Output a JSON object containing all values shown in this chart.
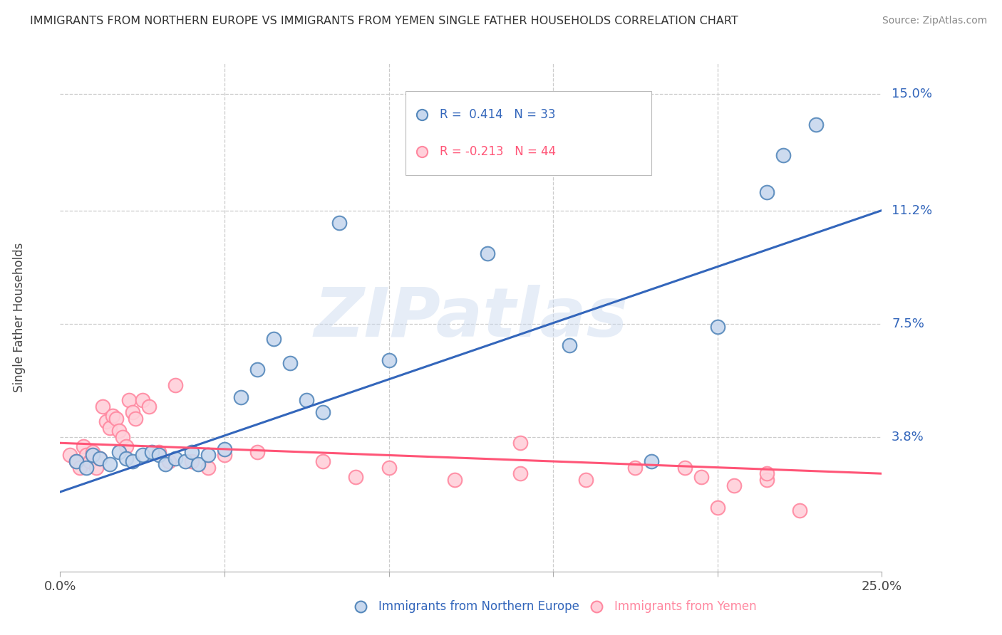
{
  "title": "IMMIGRANTS FROM NORTHERN EUROPE VS IMMIGRANTS FROM YEMEN SINGLE FATHER HOUSEHOLDS CORRELATION CHART",
  "source": "Source: ZipAtlas.com",
  "ylabel": "Single Father Households",
  "x_min": 0.0,
  "x_max": 0.25,
  "y_min": -0.006,
  "y_max": 0.16,
  "yticks": [
    0.0,
    0.038,
    0.075,
    0.112,
    0.15
  ],
  "ytick_labels": [
    "",
    "3.8%",
    "7.5%",
    "11.2%",
    "15.0%"
  ],
  "legend_r1": "R =  0.414   N = 33",
  "legend_r2": "R = -0.213   N = 44",
  "blue_color_face": "#C8D8EE",
  "blue_color_edge": "#5588BB",
  "pink_color_face": "#FFD0DA",
  "pink_color_edge": "#FF88A0",
  "blue_line_color": "#3366BB",
  "pink_line_color": "#FF5577",
  "watermark_text": "ZIPatlas",
  "legend_label_blue": "Immigrants from Northern Europe",
  "legend_label_pink": "Immigrants from Yemen",
  "blue_scatter_x": [
    0.005,
    0.008,
    0.01,
    0.012,
    0.015,
    0.018,
    0.02,
    0.022,
    0.025,
    0.028,
    0.03,
    0.032,
    0.035,
    0.038,
    0.04,
    0.042,
    0.045,
    0.05,
    0.055,
    0.06,
    0.065,
    0.07,
    0.075,
    0.08,
    0.085,
    0.1,
    0.13,
    0.155,
    0.18,
    0.2,
    0.215,
    0.22,
    0.23
  ],
  "blue_scatter_y": [
    0.03,
    0.028,
    0.032,
    0.031,
    0.029,
    0.033,
    0.031,
    0.03,
    0.032,
    0.033,
    0.032,
    0.029,
    0.031,
    0.03,
    0.033,
    0.029,
    0.032,
    0.034,
    0.051,
    0.06,
    0.07,
    0.062,
    0.05,
    0.046,
    0.108,
    0.063,
    0.098,
    0.068,
    0.03,
    0.074,
    0.118,
    0.13,
    0.14
  ],
  "pink_scatter_x": [
    0.003,
    0.005,
    0.006,
    0.007,
    0.008,
    0.009,
    0.01,
    0.011,
    0.012,
    0.013,
    0.014,
    0.015,
    0.016,
    0.017,
    0.018,
    0.019,
    0.02,
    0.021,
    0.022,
    0.023,
    0.025,
    0.027,
    0.03,
    0.033,
    0.035,
    0.04,
    0.045,
    0.05,
    0.06,
    0.08,
    0.09,
    0.1,
    0.12,
    0.14,
    0.16,
    0.175,
    0.195,
    0.205,
    0.215,
    0.225,
    0.14,
    0.19,
    0.2,
    0.215
  ],
  "pink_scatter_y": [
    0.032,
    0.03,
    0.028,
    0.035,
    0.032,
    0.03,
    0.033,
    0.028,
    0.031,
    0.048,
    0.043,
    0.041,
    0.045,
    0.044,
    0.04,
    0.038,
    0.035,
    0.05,
    0.046,
    0.044,
    0.05,
    0.048,
    0.033,
    0.03,
    0.055,
    0.03,
    0.028,
    0.032,
    0.033,
    0.03,
    0.025,
    0.028,
    0.024,
    0.026,
    0.024,
    0.028,
    0.025,
    0.022,
    0.024,
    0.014,
    0.036,
    0.028,
    0.015,
    0.026
  ],
  "blue_line_x": [
    0.0,
    0.25
  ],
  "blue_line_y": [
    0.02,
    0.112
  ],
  "pink_line_x": [
    0.0,
    0.25
  ],
  "pink_line_y": [
    0.036,
    0.026
  ]
}
